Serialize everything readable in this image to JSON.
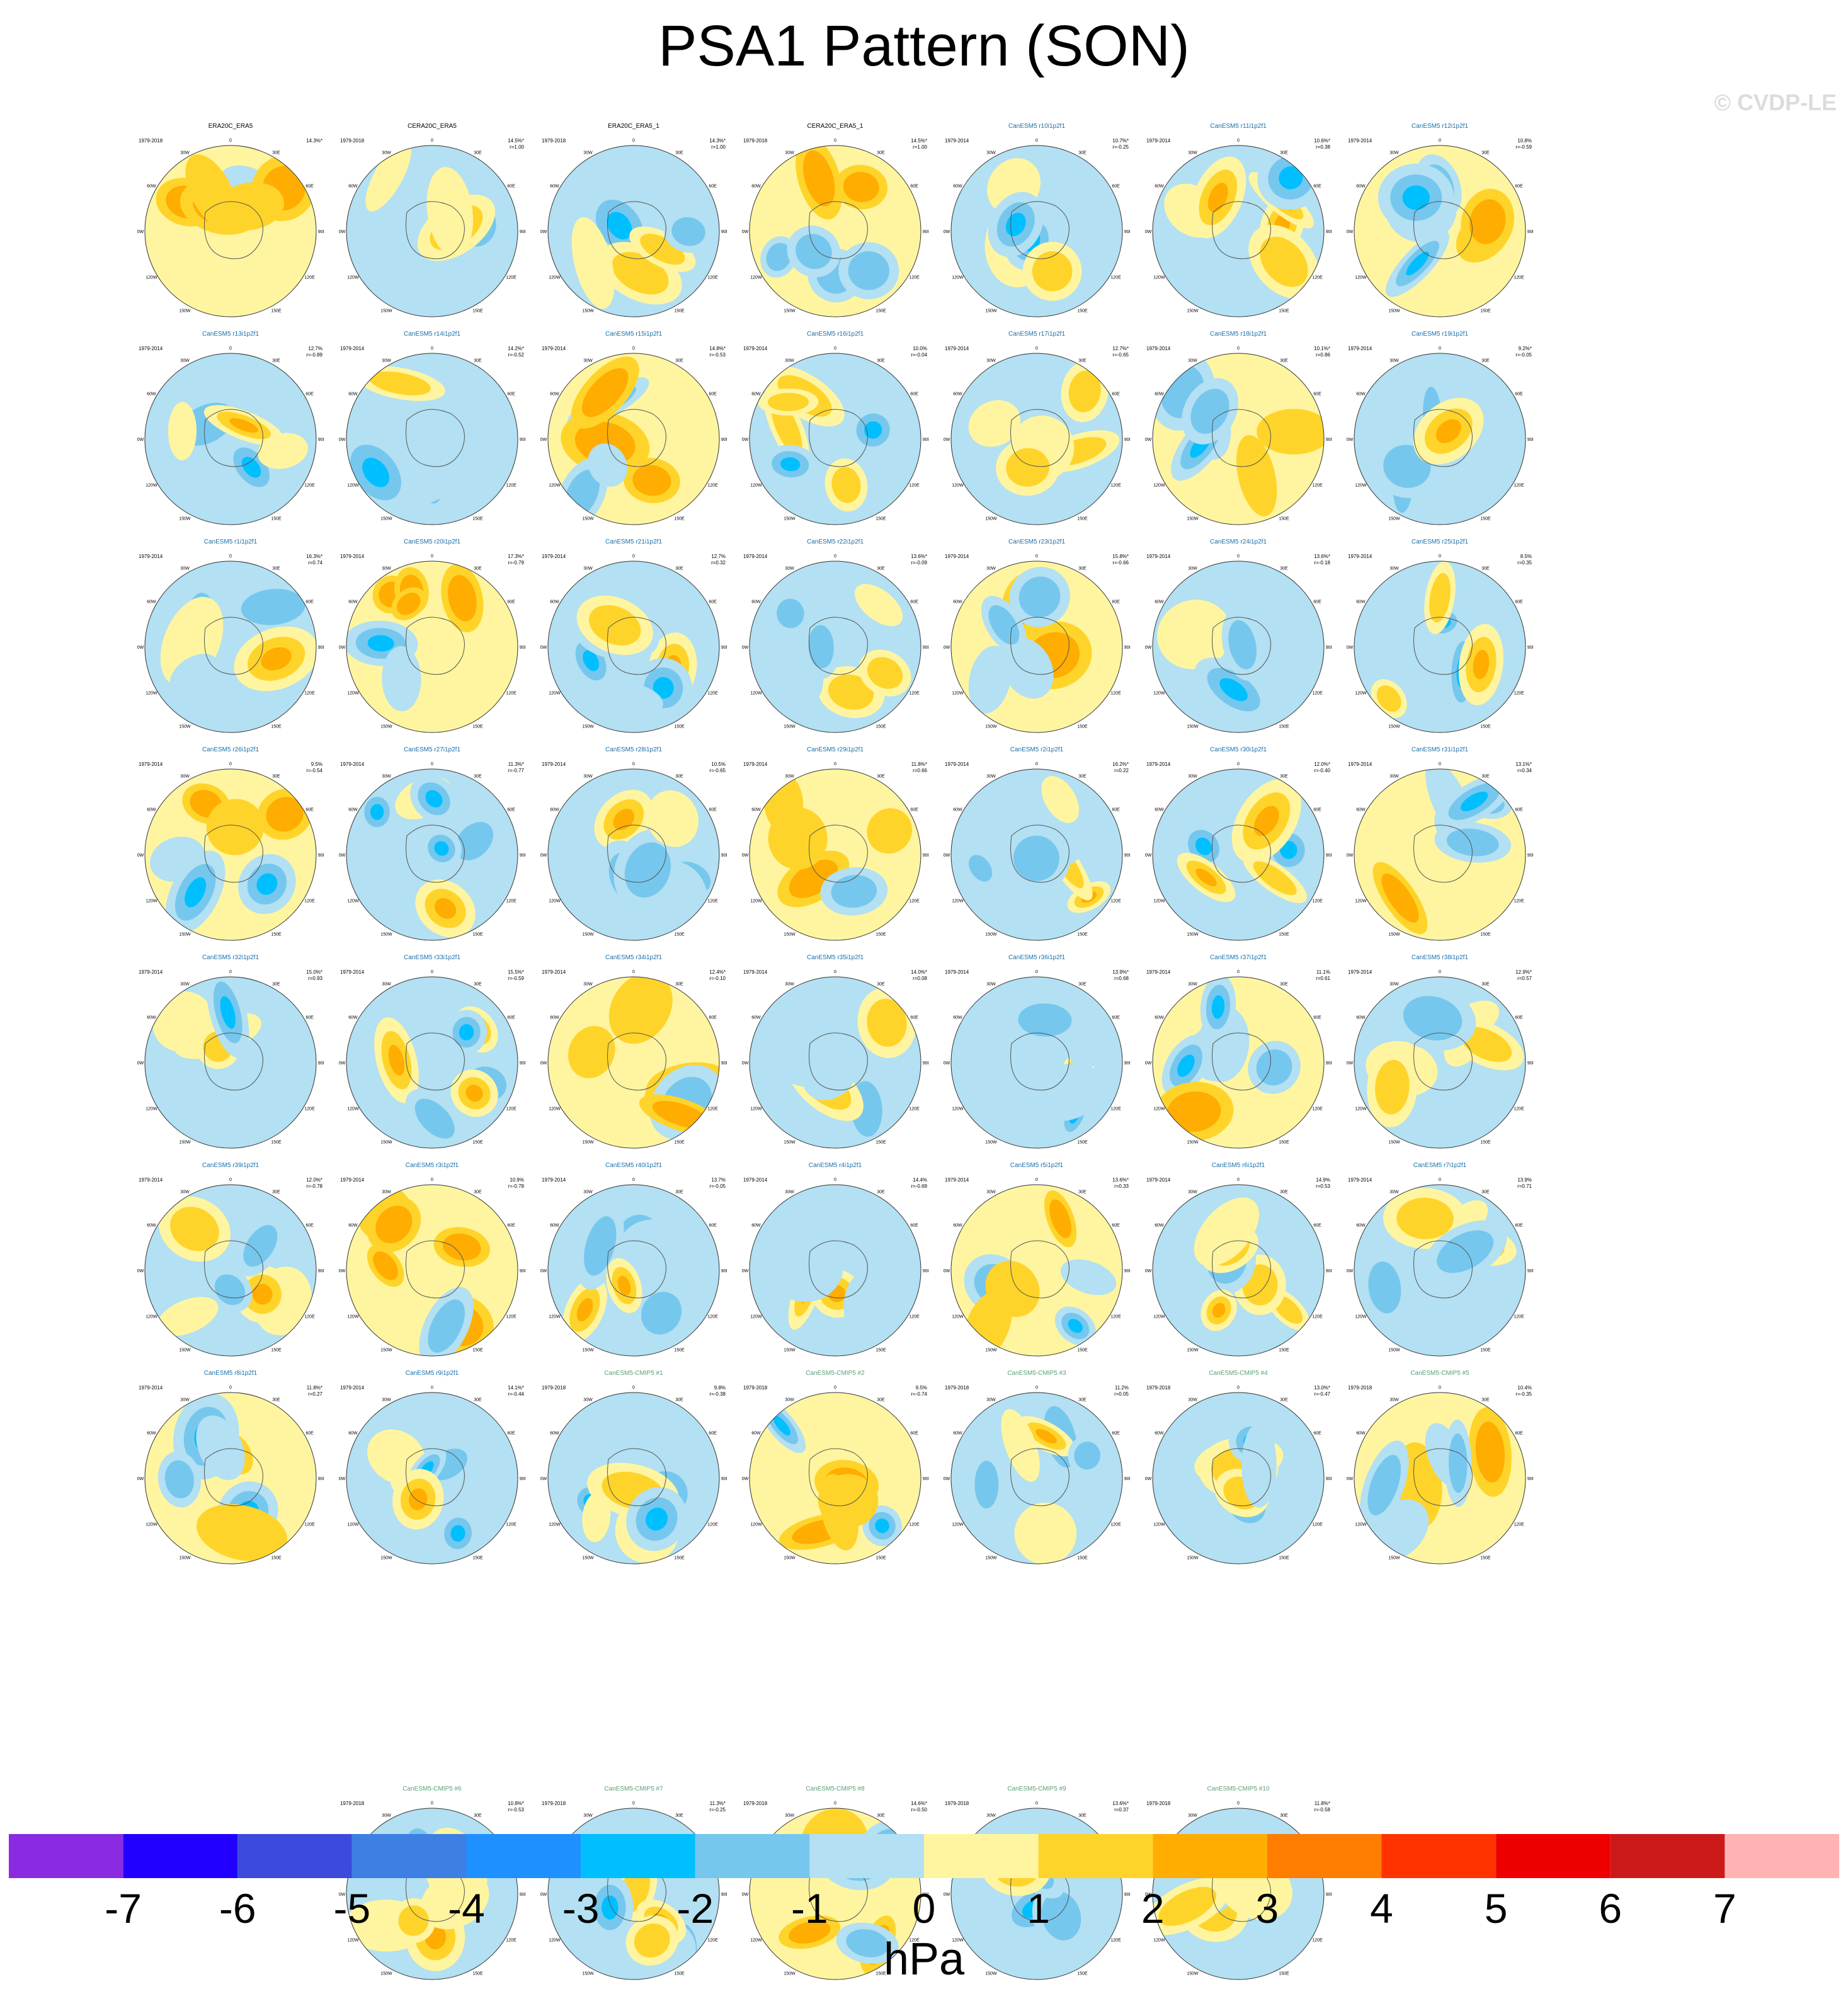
{
  "title": "PSA1 Pattern (SON)",
  "watermark": "© CVDP-LE",
  "colors": {
    "obs_title": "#000000",
    "model_title": "#1a6fa8",
    "cmip_title": "#5a9e77",
    "fill_levels": [
      "#8a2be2",
      "#2200ff",
      "#3c4bdb",
      "#3d7fe3",
      "#1e90ff",
      "#00bfff",
      "#76c7ee",
      "#b3e0f2",
      "#fff5a0",
      "#ffd42a",
      "#ffad00",
      "#ff7d00",
      "#ff3300",
      "#ee0000",
      "#cc1a1a",
      "#ffb3b3"
    ]
  },
  "panel_defs": {
    "years_obs": "1979-2018",
    "years_model": "1979-2014",
    "lon_labels": [
      "0",
      "30E",
      "60E",
      "90E",
      "120E",
      "150E",
      "180",
      "150W",
      "120W",
      "90W",
      "60W",
      "30W"
    ]
  },
  "panels": [
    {
      "title": "ERA20C_ERA5",
      "kind": "obs",
      "years": "1979-2018",
      "pct": "14.3%*",
      "r": ""
    },
    {
      "title": "CERA20C_ERA5",
      "kind": "obs",
      "years": "1979-2018",
      "pct": "14.5%*",
      "r": "r=1.00"
    },
    {
      "title": "ERA20C_ERA5_1",
      "kind": "obs",
      "years": "1979-2018",
      "pct": "14.3%*",
      "r": "r=1.00"
    },
    {
      "title": "CERA20C_ERA5_1",
      "kind": "obs",
      "years": "1979-2018",
      "pct": "14.5%*",
      "r": "r=1.00"
    },
    {
      "title": "CanESM5 r10i1p2f1",
      "kind": "model",
      "years": "1979-2014",
      "pct": "10.7%*",
      "r": "r=-0.25"
    },
    {
      "title": "CanESM5 r11i1p2f1",
      "kind": "model",
      "years": "1979-2014",
      "pct": "10.6%*",
      "r": "r=0.38"
    },
    {
      "title": "CanESM5 r12i1p2f1",
      "kind": "model",
      "years": "1979-2014",
      "pct": "10.8%",
      "r": "r=-0.59"
    },
    {
      "title": "CanESM5 r13i1p2f1",
      "kind": "model",
      "years": "1979-2014",
      "pct": "12.7%",
      "r": "r=-0.89"
    },
    {
      "title": "CanESM5 r14i1p2f1",
      "kind": "model",
      "years": "1979-2014",
      "pct": "14.2%*",
      "r": "r=-0.52"
    },
    {
      "title": "CanESM5 r15i1p2f1",
      "kind": "model",
      "years": "1979-2014",
      "pct": "14.8%*",
      "r": "r=-0.53"
    },
    {
      "title": "CanESM5 r16i1p2f1",
      "kind": "model",
      "years": "1979-2014",
      "pct": "10.0%",
      "r": "r=-0.04"
    },
    {
      "title": "CanESM5 r17i1p2f1",
      "kind": "model",
      "years": "1979-2014",
      "pct": "12.7%*",
      "r": "r=-0.65"
    },
    {
      "title": "CanESM5 r18i1p2f1",
      "kind": "model",
      "years": "1979-2014",
      "pct": "10.1%*",
      "r": "r=0.86"
    },
    {
      "title": "CanESM5 r19i1p2f1",
      "kind": "model",
      "years": "1979-2014",
      "pct": "9.2%*",
      "r": "r=-0.05"
    },
    {
      "title": "CanESM5 r1i1p2f1",
      "kind": "model",
      "years": "1979-2014",
      "pct": "16.3%*",
      "r": "r=0.74"
    },
    {
      "title": "CanESM5 r20i1p2f1",
      "kind": "model",
      "years": "1979-2014",
      "pct": "17.3%*",
      "r": "r=-0.79"
    },
    {
      "title": "CanESM5 r21i1p2f1",
      "kind": "model",
      "years": "1979-2014",
      "pct": "12.7%",
      "r": "r=0.32"
    },
    {
      "title": "CanESM5 r22i1p2f1",
      "kind": "model",
      "years": "1979-2014",
      "pct": "13.6%*",
      "r": "r=-0.09"
    },
    {
      "title": "CanESM5 r23i1p2f1",
      "kind": "model",
      "years": "1979-2014",
      "pct": "15.8%*",
      "r": "r=-0.66"
    },
    {
      "title": "CanESM5 r24i1p2f1",
      "kind": "model",
      "years": "1979-2014",
      "pct": "13.6%*",
      "r": "r=-0.18"
    },
    {
      "title": "CanESM5 r25i1p2f1",
      "kind": "model",
      "years": "1979-2014",
      "pct": "8.5%",
      "r": "r=0.35"
    },
    {
      "title": "CanESM5 r26i1p2f1",
      "kind": "model",
      "years": "1979-2014",
      "pct": "9.5%",
      "r": "r=-0.54"
    },
    {
      "title": "CanESM5 r27i1p2f1",
      "kind": "model",
      "years": "1979-2014",
      "pct": "11.3%*",
      "r": "r=-0.77"
    },
    {
      "title": "CanESM5 r28i1p2f1",
      "kind": "model",
      "years": "1979-2014",
      "pct": "10.5%",
      "r": "r=-0.65"
    },
    {
      "title": "CanESM5 r29i1p2f1",
      "kind": "model",
      "years": "1979-2014",
      "pct": "11.8%*",
      "r": "r=0.66"
    },
    {
      "title": "CanESM5 r2i1p2f1",
      "kind": "model",
      "years": "1979-2014",
      "pct": "16.2%*",
      "r": "r=0.22"
    },
    {
      "title": "CanESM5 r30i1p2f1",
      "kind": "model",
      "years": "1979-2014",
      "pct": "12.0%*",
      "r": "r=-0.40"
    },
    {
      "title": "CanESM5 r31i1p2f1",
      "kind": "model",
      "years": "1979-2014",
      "pct": "13.1%*",
      "r": "r=0.34"
    },
    {
      "title": "CanESM5 r32i1p2f1",
      "kind": "model",
      "years": "1979-2014",
      "pct": "15.0%*",
      "r": "r=0.93"
    },
    {
      "title": "CanESM5 r33i1p2f1",
      "kind": "model",
      "years": "1979-2014",
      "pct": "15.5%*",
      "r": "r=-0.59"
    },
    {
      "title": "CanESM5 r34i1p2f1",
      "kind": "model",
      "years": "1979-2014",
      "pct": "12.4%*",
      "r": "r=-0.10"
    },
    {
      "title": "CanESM5 r35i1p2f1",
      "kind": "model",
      "years": "1979-2014",
      "pct": "14.0%*",
      "r": "r=0.08"
    },
    {
      "title": "CanESM5 r36i1p2f1",
      "kind": "model",
      "years": "1979-2014",
      "pct": "13.9%*",
      "r": "r=0.68"
    },
    {
      "title": "CanESM5 r37i1p2f1",
      "kind": "model",
      "years": "1979-2014",
      "pct": "11.1%",
      "r": "r=0.61"
    },
    {
      "title": "CanESM5 r38i1p2f1",
      "kind": "model",
      "years": "1979-2014",
      "pct": "12.9%*",
      "r": "r=0.57"
    },
    {
      "title": "CanESM5 r39i1p2f1",
      "kind": "model",
      "years": "1979-2014",
      "pct": "12.0%*",
      "r": "r=-0.78"
    },
    {
      "title": "CanESM5 r3i1p2f1",
      "kind": "model",
      "years": "1979-2014",
      "pct": "10.9%",
      "r": "r=-0.78"
    },
    {
      "title": "CanESM5 r40i1p2f1",
      "kind": "model",
      "years": "1979-2014",
      "pct": "13.7%",
      "r": "r=-0.05"
    },
    {
      "title": "CanESM5 r4i1p2f1",
      "kind": "model",
      "years": "1979-2014",
      "pct": "14.4%",
      "r": "r=-0.69"
    },
    {
      "title": "CanESM5 r5i1p2f1",
      "kind": "model",
      "years": "1979-2014",
      "pct": "13.6%*",
      "r": "r=0.33"
    },
    {
      "title": "CanESM5 r6i1p2f1",
      "kind": "model",
      "years": "1979-2014",
      "pct": "14.9%",
      "r": "r=0.53"
    },
    {
      "title": "CanESM5 r7i1p2f1",
      "kind": "model",
      "years": "1979-2014",
      "pct": "13.9%",
      "r": "r=0.71"
    },
    {
      "title": "CanESM5 r8i1p2f1",
      "kind": "model",
      "years": "1979-2014",
      "pct": "11.8%*",
      "r": "r=0.27"
    },
    {
      "title": "CanESM5 r9i1p2f1",
      "kind": "model",
      "years": "1979-2014",
      "pct": "14.1%*",
      "r": "r=-0.44"
    },
    {
      "title": "CanESM5-CMIP5 #1",
      "kind": "cmip",
      "years": "1979-2018",
      "pct": "9.8%",
      "r": "r=-0.38"
    },
    {
      "title": "CanESM5-CMIP5 #2",
      "kind": "cmip",
      "years": "1979-2018",
      "pct": "9.5%",
      "r": "r=-0.74"
    },
    {
      "title": "CanESM5-CMIP5 #3",
      "kind": "cmip",
      "years": "1979-2018",
      "pct": "11.2%",
      "r": "r=0.05"
    },
    {
      "title": "CanESM5-CMIP5 #4",
      "kind": "cmip",
      "years": "1979-2018",
      "pct": "13.0%*",
      "r": "r=-0.47"
    },
    {
      "title": "CanESM5-CMIP5 #5",
      "kind": "cmip",
      "years": "1979-2018",
      "pct": "10.4%",
      "r": "r=-0.35"
    },
    {
      "title": "CanESM5-CMIP5 #6",
      "kind": "cmip",
      "years": "1979-2018",
      "pct": "10.8%*",
      "r": "r=-0.53"
    },
    {
      "title": "CanESM5-CMIP5 #7",
      "kind": "cmip",
      "years": "1979-2018",
      "pct": "11.3%*",
      "r": "r=-0.25"
    },
    {
      "title": "CanESM5-CMIP5 #8",
      "kind": "cmip",
      "years": "1979-2018",
      "pct": "14.6%*",
      "r": "r=-0.50"
    },
    {
      "title": "CanESM5-CMIP5 #9",
      "kind": "cmip",
      "years": "1979-2018",
      "pct": "13.6%*",
      "r": "r=0.37"
    },
    {
      "title": "CanESM5-CMIP5 #10",
      "kind": "cmip",
      "years": "1979-2018",
      "pct": "11.8%*",
      "r": "r=-0.58"
    }
  ],
  "colorbar": {
    "labels": [
      "-7",
      "-6",
      "-5",
      "-4",
      "-3",
      "-2",
      "-1",
      "0",
      "1",
      "2",
      "3",
      "4",
      "5",
      "6",
      "7"
    ],
    "units": "hPa"
  }
}
